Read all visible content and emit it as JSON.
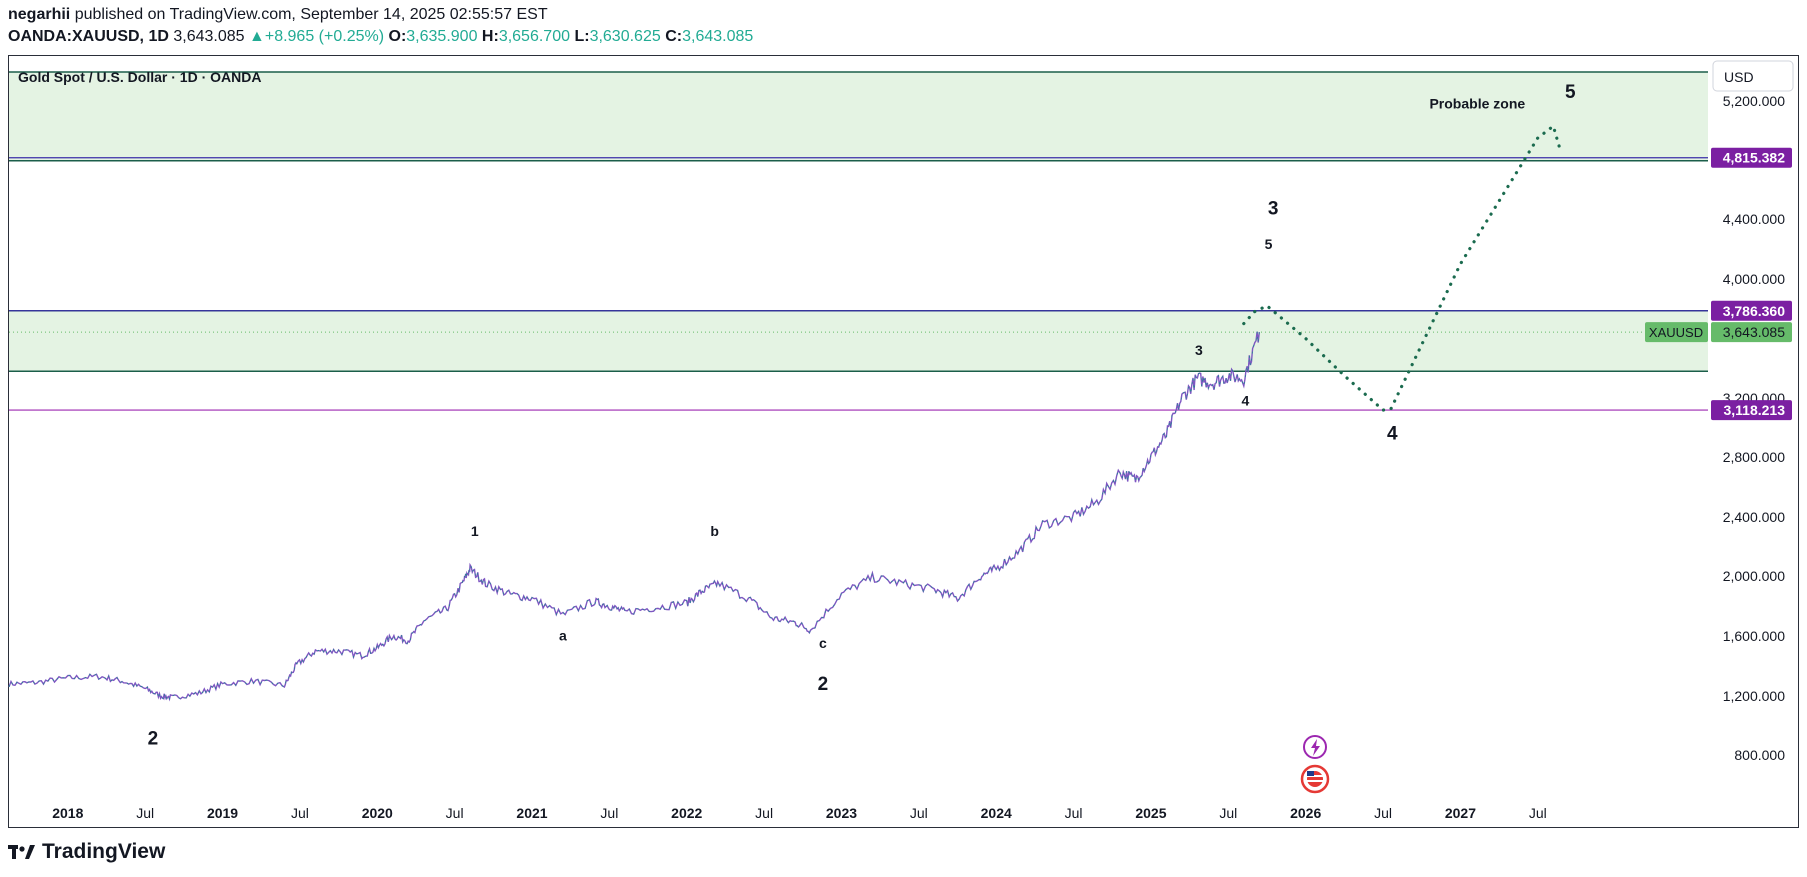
{
  "header": {
    "author": "negarhii",
    "published": "published on TradingView.com, September 14, 2025 02:55:57 EST",
    "symbol": "OANDA:XAUUSD, 1D",
    "last": "3,643.085",
    "change": "+8.965 (+0.25%)",
    "o_label": "O:",
    "o": "3,635.900",
    "h_label": "H:",
    "h": "3,656.700",
    "l_label": "L:",
    "l": "3,630.625",
    "c_label": "C:",
    "c": "3,643.085"
  },
  "chart_title": "Gold Spot / U.S. Dollar · 1D · OANDA",
  "currency": "USD",
  "brand": "TradingView",
  "colors": {
    "zone_fill": "#e4f3e3",
    "zone_border": "#1b5e4a",
    "resistance_line": "#3b2ea8",
    "support_line": "#9c27b0",
    "price_badge": "#7b1fa2",
    "last_badge": "#66bb6a",
    "projection": "#1b6b4f",
    "candle_up": "#089981",
    "candle_down": "#7e57c2"
  },
  "chart_data": {
    "type": "line",
    "title": "Gold Spot / U.S. Dollar · 1D · OANDA",
    "xlabel": "",
    "ylabel": "",
    "x_ticks": [
      "2018",
      "Jul",
      "2019",
      "Jul",
      "2020",
      "Jul",
      "2021",
      "Jul",
      "2022",
      "Jul",
      "2023",
      "Jul",
      "2024",
      "Jul",
      "2025",
      "Jul",
      "2026",
      "Jul",
      "2027",
      "Jul"
    ],
    "x_tick_years": [
      2018.0,
      2018.5,
      2019.0,
      2019.5,
      2020.0,
      2020.5,
      2021.0,
      2021.5,
      2022.0,
      2022.5,
      2023.0,
      2023.5,
      2024.0,
      2024.5,
      2025.0,
      2025.5,
      2026.0,
      2026.5,
      2027.0,
      2027.5
    ],
    "xlim": [
      2017.62,
      2028.6
    ],
    "ylim": [
      460,
      5400
    ],
    "y_ticks": [
      "800.000",
      "1,200.000",
      "1,600.000",
      "2,000.000",
      "2,400.000",
      "2,800.000",
      "3,200.000",
      "4,000.000",
      "4,400.000",
      "5,200.000"
    ],
    "y_tick_values": [
      800,
      1200,
      1600,
      2000,
      2400,
      2800,
      3200,
      4000,
      4400,
      5200
    ],
    "grid": false,
    "series": [
      {
        "name": "XAUUSD",
        "x": [
          2017.62,
          2017.8,
          2018.0,
          2018.2,
          2018.35,
          2018.5,
          2018.6,
          2018.68,
          2018.85,
          2019.0,
          2019.2,
          2019.4,
          2019.48,
          2019.6,
          2019.75,
          2019.9,
          2020.0,
          2020.1,
          2020.2,
          2020.3,
          2020.45,
          2020.55,
          2020.6,
          2020.7,
          2020.85,
          2021.0,
          2021.2,
          2021.4,
          2021.5,
          2021.6,
          2021.8,
          2022.0,
          2022.1,
          2022.2,
          2022.4,
          2022.55,
          2022.7,
          2022.8,
          2023.0,
          2023.2,
          2023.4,
          2023.6,
          2023.75,
          2023.9,
          2024.0,
          2024.15,
          2024.3,
          2024.5,
          2024.65,
          2024.8,
          2024.9,
          2025.0,
          2025.1,
          2025.2,
          2025.3,
          2025.4,
          2025.5,
          2025.6,
          2025.7
        ],
        "y": [
          1280,
          1290,
          1320,
          1330,
          1300,
          1250,
          1200,
          1190,
          1220,
          1280,
          1300,
          1270,
          1410,
          1500,
          1500,
          1470,
          1520,
          1600,
          1570,
          1700,
          1780,
          1950,
          2050,
          1950,
          1880,
          1850,
          1740,
          1830,
          1800,
          1760,
          1790,
          1820,
          1900,
          1950,
          1850,
          1720,
          1690,
          1640,
          1880,
          1990,
          1950,
          1910,
          1850,
          2000,
          2050,
          2170,
          2350,
          2400,
          2500,
          2700,
          2650,
          2800,
          2950,
          3200,
          3330,
          3300,
          3350,
          3330,
          3643
        ]
      },
      {
        "name": "",
        "x": [
          2025.6,
          2025.67,
          2025.75,
          2026.0,
          2026.25,
          2026.5,
          2026.55,
          2027.0,
          2027.5,
          2027.6,
          2027.65
        ],
        "y": [
          3700,
          3780,
          3820,
          3600,
          3350,
          3118,
          3125,
          4100,
          4950,
          5030,
          4850
        ],
        "style": "dotted"
      }
    ],
    "zones": [
      {
        "from": 3380,
        "to": 3786.36
      },
      {
        "from": 4795,
        "to": 5400
      }
    ],
    "lines": [
      {
        "value": 4815.382,
        "label": "4,815.382"
      },
      {
        "value": 3786.36,
        "label": "3,786.360"
      },
      {
        "value": 3118.213,
        "label": "3,118.213"
      }
    ],
    "last_price": {
      "value": 3643.085,
      "label": "3,643.085",
      "tag": "XAUUSD"
    },
    "annotations": [
      {
        "text": "2",
        "x": 2018.55,
        "y": 870,
        "size": "large"
      },
      {
        "text": "1",
        "x": 2020.63,
        "y": 2270,
        "size": "small"
      },
      {
        "text": "a",
        "x": 2021.2,
        "y": 1570,
        "size": "small"
      },
      {
        "text": "b",
        "x": 2022.18,
        "y": 2270,
        "size": "small"
      },
      {
        "text": "c",
        "x": 2022.88,
        "y": 1520,
        "size": "small"
      },
      {
        "text": "2",
        "x": 2022.88,
        "y": 1240,
        "size": "large"
      },
      {
        "text": "3",
        "x": 2025.31,
        "y": 3490,
        "size": "small"
      },
      {
        "text": "4",
        "x": 2025.61,
        "y": 3150,
        "size": "small"
      },
      {
        "text": "5",
        "x": 2025.76,
        "y": 4200,
        "size": "small"
      },
      {
        "text": "3",
        "x": 2025.79,
        "y": 4430,
        "size": "large"
      },
      {
        "text": "4",
        "x": 2026.56,
        "y": 2920,
        "size": "large"
      },
      {
        "text": "Probable zone",
        "x": 2026.8,
        "y": 5150,
        "size": "label"
      },
      {
        "text": "5",
        "x": 2027.71,
        "y": 5220,
        "size": "large"
      }
    ]
  }
}
